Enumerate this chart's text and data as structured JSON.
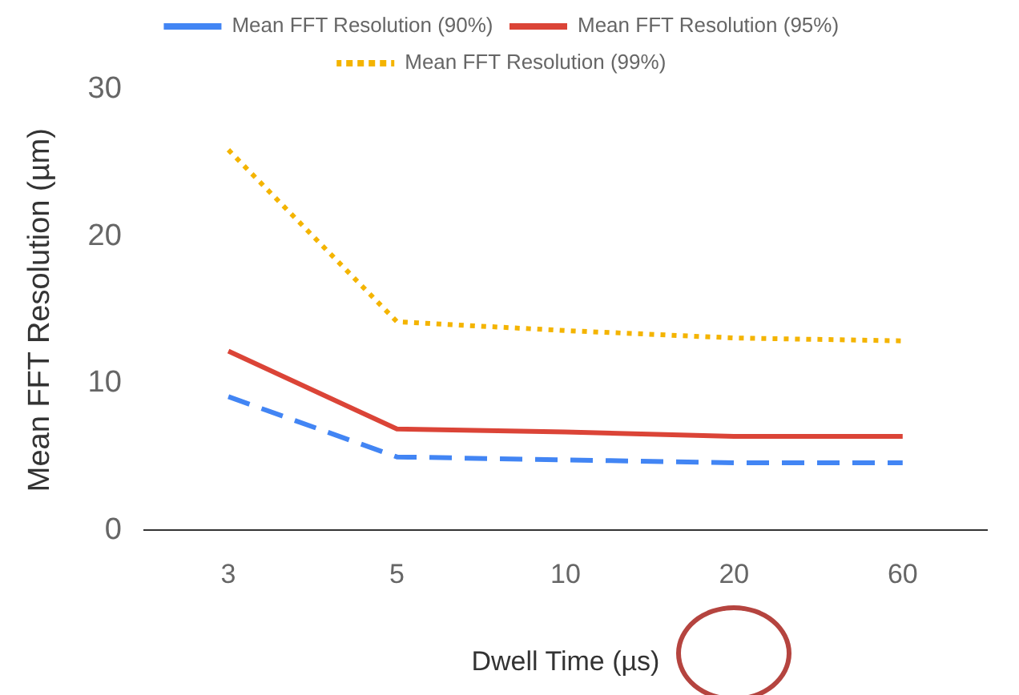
{
  "chart_data": {
    "type": "line",
    "xlabel": "Dwell Time (µs)",
    "ylabel": "Mean FFT Resolution (µm)",
    "categories": [
      "3",
      "5",
      "10",
      "20",
      "60"
    ],
    "series": [
      {
        "name": "Mean FFT Resolution (90%)",
        "color": "#4285f4",
        "line_style": "dashed",
        "values": [
          9.1,
          5.0,
          4.8,
          4.6,
          4.6
        ]
      },
      {
        "name": "Mean FFT Resolution (95%)",
        "color": "#db4437",
        "line_style": "solid",
        "values": [
          12.2,
          6.9,
          6.7,
          6.4,
          6.4
        ]
      },
      {
        "name": "Mean FFT Resolution (99%)",
        "color": "#f4b400",
        "line_style": "dotted",
        "values": [
          25.9,
          14.2,
          13.6,
          13.1,
          12.9
        ]
      }
    ],
    "ylim": [
      0,
      30
    ],
    "yticks": [
      0,
      10,
      20,
      30
    ],
    "grid": false,
    "legend": "top",
    "marker": "none"
  }
}
